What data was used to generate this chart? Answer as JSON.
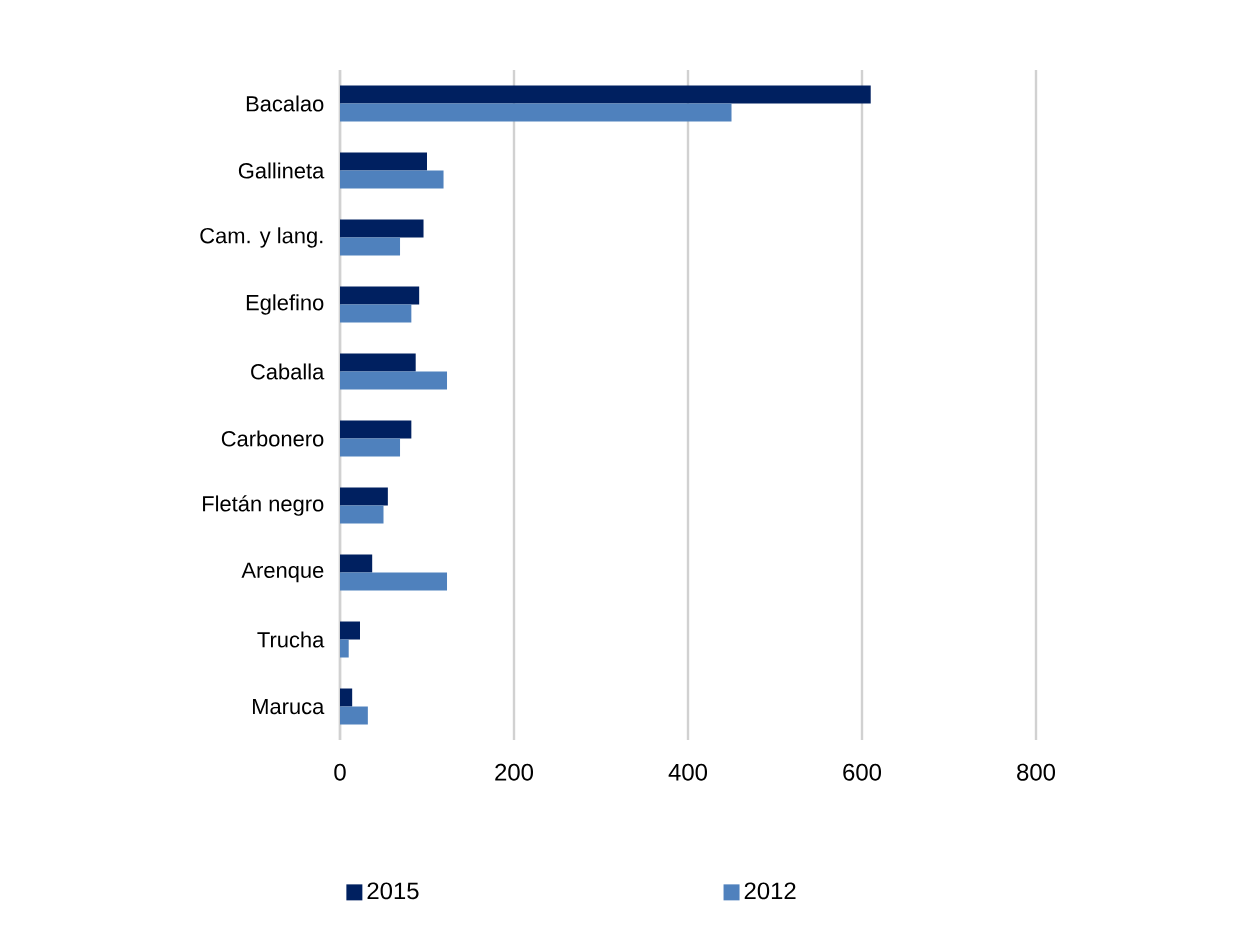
{
  "chart_data": {
    "type": "bar",
    "orientation": "horizontal",
    "categories": [
      "Bacalao",
      "Gallineta",
      "Cam. y lang.",
      "Eglefino",
      "Caballa",
      "Carbonero",
      "Fletán negro",
      "Arenque",
      "Trucha",
      "Maruca"
    ],
    "series": [
      {
        "name": "2015",
        "color": "#002060",
        "values": [
          610,
          100,
          96,
          91,
          87,
          82,
          55,
          37,
          23,
          14
        ]
      },
      {
        "name": "2012",
        "color": "#4f81bd",
        "values": [
          450,
          119,
          69,
          82,
          123,
          69,
          50,
          123,
          10,
          32
        ]
      }
    ],
    "xlim": [
      0,
      800
    ],
    "xticks": [
      0,
      200,
      400,
      600,
      800
    ],
    "grid": "x",
    "legend": "bottom"
  }
}
